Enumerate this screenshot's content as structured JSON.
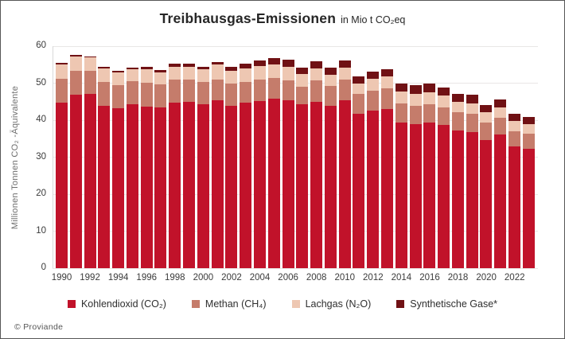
{
  "title": {
    "main": "Treibhausgas-Emissionen",
    "unit": "in Mio t CO₂eq"
  },
  "footer": {
    "credit": "© Proviande"
  },
  "axes": {
    "y_label": "Millionen Tonnen CO₂ -Äquivalente",
    "y_ticks": [
      0,
      10,
      20,
      30,
      40,
      50,
      60
    ]
  },
  "colors": {
    "co2": "#c1122a",
    "ch4": "#c57c6b",
    "n2o": "#eec7b2",
    "syn": "#701114",
    "grid": "#e9e7e6"
  },
  "chart_data": {
    "type": "bar",
    "stacked": true,
    "title": "Treibhausgas-Emissionen in Mio t CO₂eq",
    "ylabel": "Millionen Tonnen CO₂ -Äquivalente",
    "xlabel": "",
    "ylim": [
      0,
      60
    ],
    "grid": true,
    "legend_position": "bottom",
    "x": [
      1990,
      1991,
      1992,
      1993,
      1994,
      1995,
      1996,
      1997,
      1998,
      1999,
      2000,
      2001,
      2002,
      2003,
      2004,
      2005,
      2006,
      2007,
      2008,
      2009,
      2010,
      2011,
      2012,
      2013,
      2014,
      2015,
      2016,
      2017,
      2018,
      2019,
      2020,
      2021,
      2022,
      2023
    ],
    "x_tick_labels": [
      1990,
      1992,
      1994,
      1996,
      1998,
      2000,
      2002,
      2004,
      2006,
      2008,
      2010,
      2012,
      2014,
      2016,
      2018,
      2020,
      2022
    ],
    "series": [
      {
        "name": "Kohlendioxid (CO₂)",
        "color": "#c1122a",
        "values": [
          44.7,
          46.8,
          47.0,
          43.9,
          43.2,
          44.3,
          43.7,
          43.4,
          44.7,
          44.9,
          44.3,
          45.3,
          43.9,
          44.7,
          45.2,
          45.9,
          45.3,
          44.2,
          45.0,
          43.9,
          45.4,
          41.8,
          42.5,
          43.0,
          39.3,
          38.9,
          39.4,
          38.7,
          37.3,
          36.8,
          34.6,
          36.2,
          32.8,
          32.3
        ]
      },
      {
        "name": "Methan (CH₄)",
        "color": "#c57c6b",
        "values": [
          6.5,
          6.6,
          6.4,
          6.5,
          6.3,
          6.2,
          6.4,
          6.2,
          6.2,
          6.0,
          6.0,
          5.7,
          6.1,
          5.7,
          5.7,
          5.5,
          5.5,
          4.8,
          5.8,
          5.4,
          5.5,
          5.2,
          5.5,
          5.6,
          5.2,
          5.0,
          4.9,
          4.7,
          4.9,
          5.0,
          4.7,
          4.5,
          4.3,
          4.1
        ]
      },
      {
        "name": "Lachgas (N₂O)",
        "color": "#eec7b2",
        "values": [
          3.9,
          3.8,
          3.5,
          3.6,
          3.4,
          3.3,
          3.7,
          3.3,
          3.6,
          3.6,
          3.5,
          4.1,
          3.4,
          3.6,
          3.8,
          3.7,
          3.7,
          3.5,
          3.2,
          3.0,
          3.3,
          3.0,
          3.1,
          3.2,
          3.3,
          3.3,
          3.3,
          3.2,
          2.8,
          2.8,
          2.8,
          2.8,
          2.6,
          2.5
        ]
      },
      {
        "name": "Synthetische Gase*",
        "color": "#701114",
        "values": [
          0.4,
          0.4,
          0.4,
          0.5,
          0.5,
          0.5,
          0.6,
          0.6,
          0.7,
          0.7,
          0.7,
          0.7,
          1.1,
          1.3,
          1.5,
          1.7,
          1.8,
          1.7,
          1.9,
          1.9,
          1.9,
          1.8,
          2.0,
          2.0,
          2.2,
          2.3,
          2.3,
          2.2,
          2.0,
          2.2,
          2.0,
          2.2,
          2.1,
          2.0
        ]
      }
    ]
  }
}
